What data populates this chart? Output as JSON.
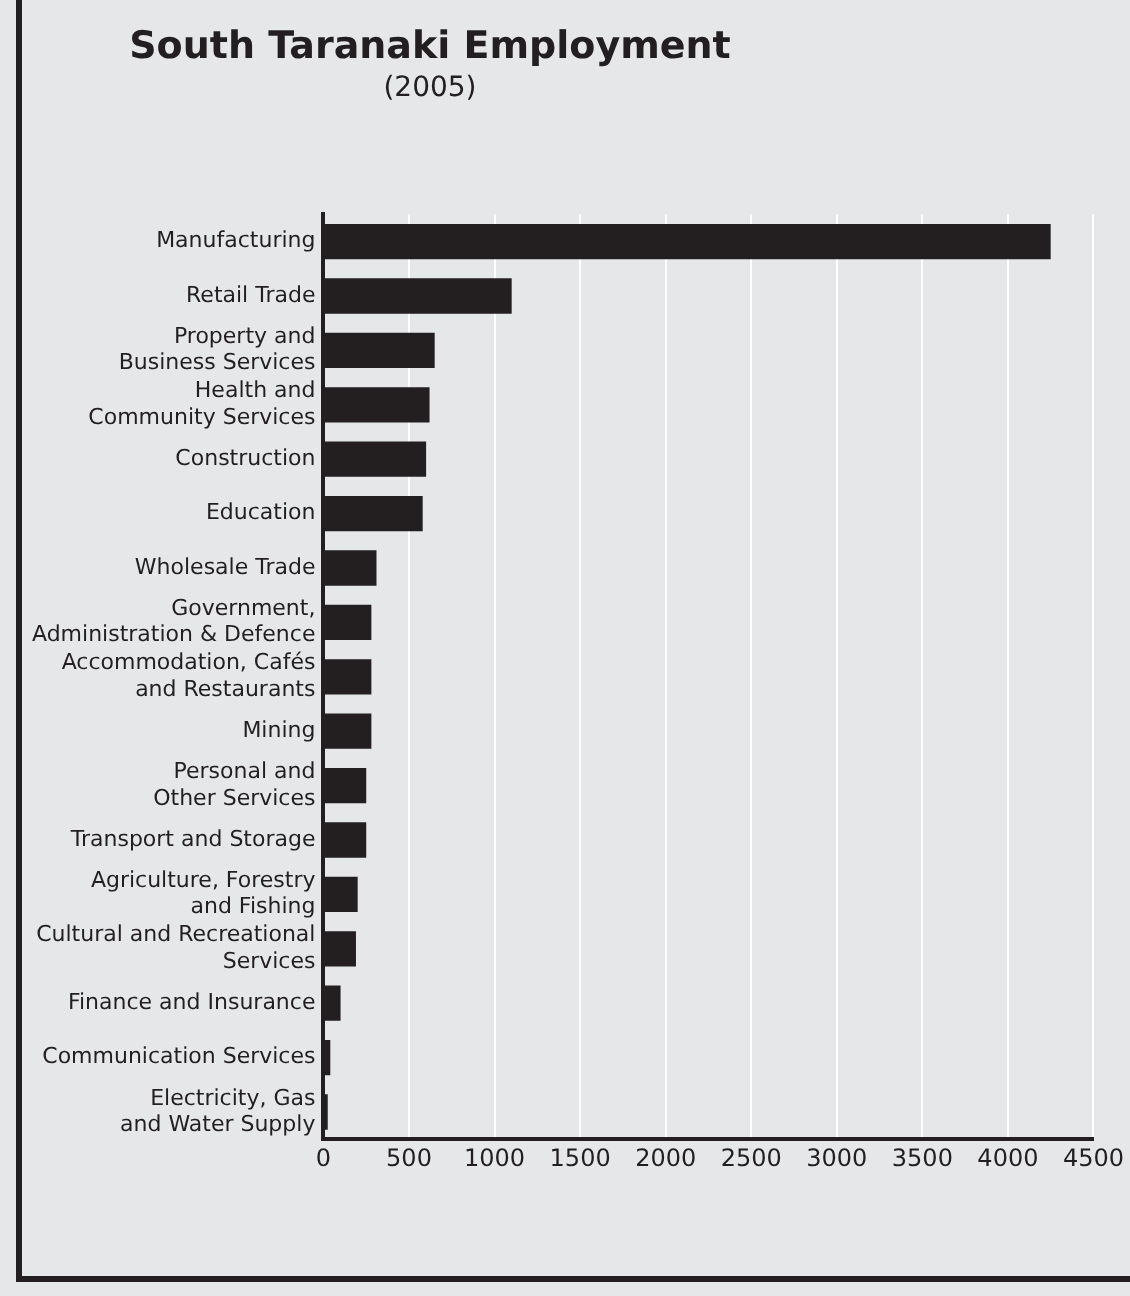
{
  "chart_data": {
    "type": "bar",
    "orientation": "horizontal",
    "title": "South Taranaki Employment",
    "subtitle": "(2005)",
    "categories": [
      "Manufacturing",
      "Retail Trade",
      "Property and\nBusiness Services",
      "Health and\nCommunity Services",
      "Construction",
      "Education",
      "Wholesale Trade",
      "Government,\nAdministration & Defence",
      "Accommodation, Cafés\nand Restaurants",
      "Mining",
      "Personal and\nOther Services",
      "Transport and Storage",
      "Agriculture, Forestry\nand Fishing",
      "Cultural and Recreational\nServices",
      "Finance and Insurance",
      "Communication Services",
      "Electricity, Gas\nand Water Supply"
    ],
    "values": [
      4250,
      1100,
      650,
      620,
      600,
      580,
      310,
      280,
      280,
      280,
      250,
      250,
      200,
      190,
      100,
      40,
      25
    ],
    "color": "#231f20",
    "xlim": [
      0,
      4500
    ],
    "xticks": [
      0,
      500,
      1000,
      1500,
      2000,
      2500,
      3000,
      3500,
      4000,
      4500
    ],
    "grid": "x",
    "legend": false
  }
}
